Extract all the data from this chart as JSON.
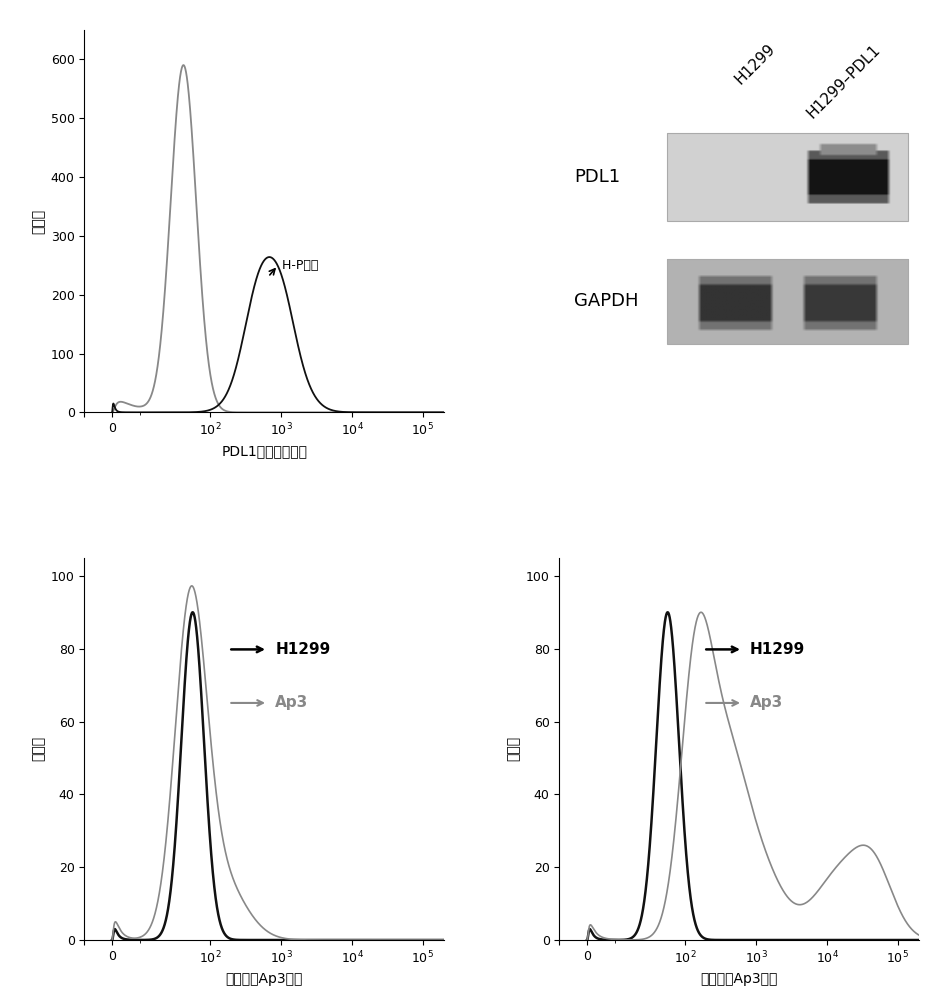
{
  "background_color": "#ffffff",
  "panel_tl": {
    "xlabel": "PDL1抗体荧光强度",
    "ylabel": "细胞数",
    "ylim": [
      0,
      650
    ],
    "yticks": [
      0,
      100,
      200,
      300,
      400,
      500,
      600
    ],
    "annotation": "→ H-P细胞",
    "line_gray_color": "#888888",
    "line_black_color": "#111111"
  },
  "panel_bl": {
    "xlabel": "核酸适体Ap3荧光",
    "ylabel": "细胞数",
    "ylim": [
      0,
      105
    ],
    "yticks": [
      0,
      20,
      40,
      60,
      80,
      100
    ],
    "legend_h1299": "H1299",
    "legend_ap3": "Ap3",
    "line_black_color": "#111111",
    "line_gray_color": "#888888"
  },
  "panel_br": {
    "xlabel": "核酸适体Ap3荧光",
    "ylabel": "细胞数",
    "ylim": [
      0,
      105
    ],
    "yticks": [
      0,
      20,
      40,
      60,
      80,
      100
    ],
    "legend_h1299": "H1299",
    "legend_ap3": "Ap3",
    "line_black_color": "#111111",
    "line_gray_color": "#888888"
  },
  "panel_tr": {
    "label_pdl1": "PDL1",
    "label_gapdh": "GAPDH",
    "label_h1299": "H1299",
    "label_h1299pdl1": "H1299–PDL1"
  }
}
